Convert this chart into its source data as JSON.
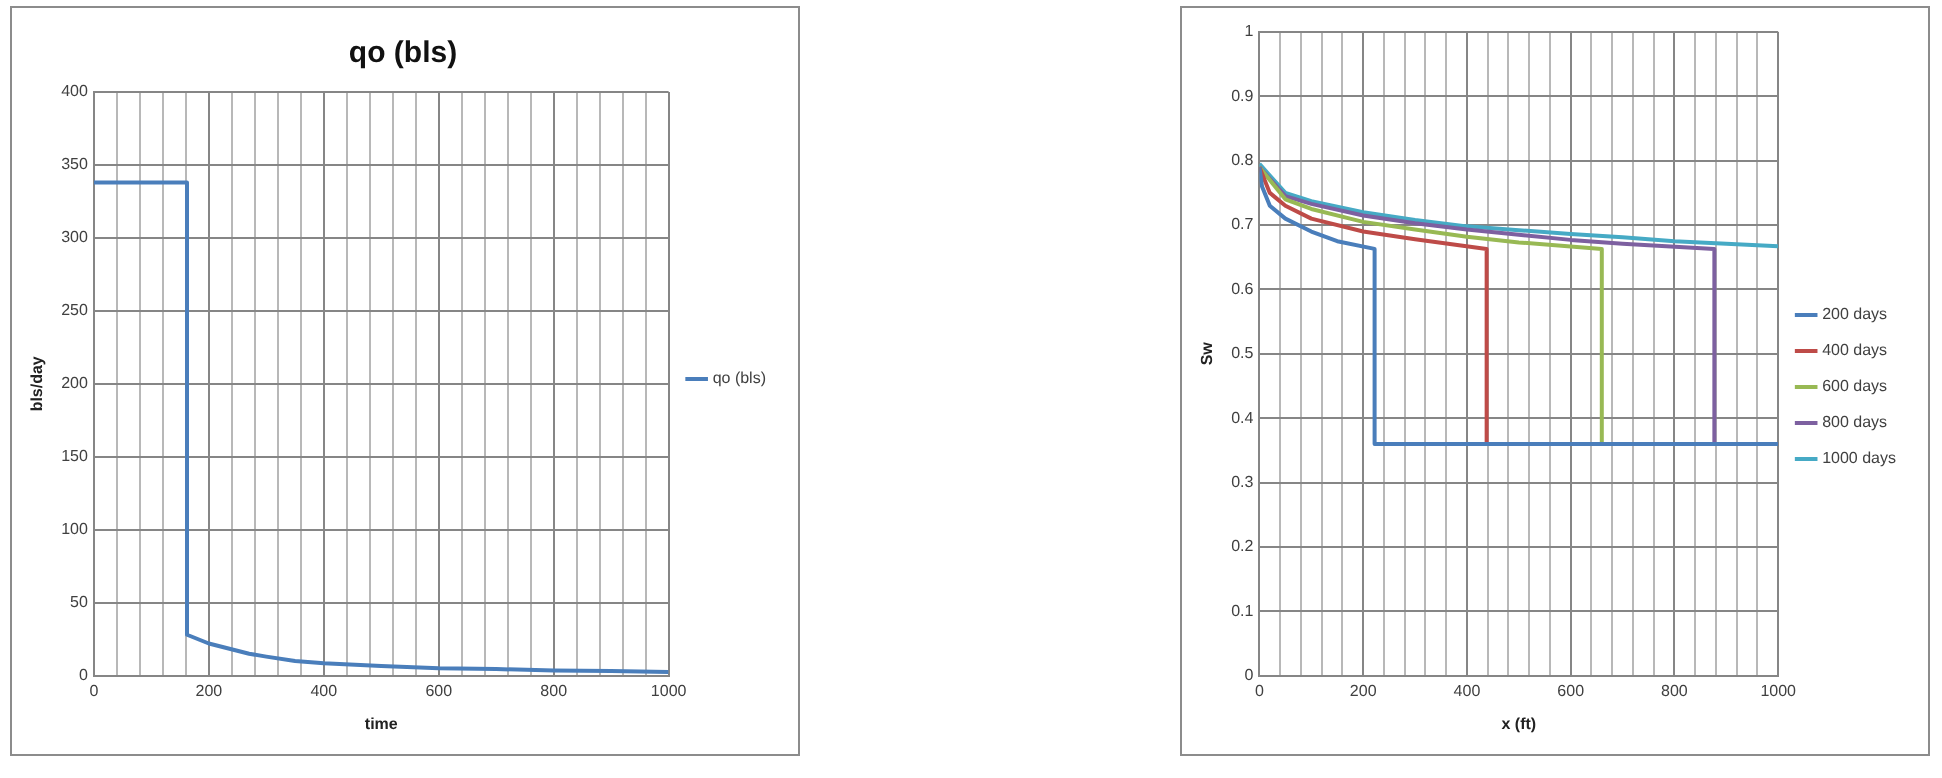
{
  "chart_data": [
    {
      "type": "line",
      "title": "qo (bls)",
      "xlabel": "time",
      "ylabel": "bls/day",
      "xlim": [
        0,
        1000
      ],
      "ylim": [
        0,
        400
      ],
      "xticks": [
        0,
        {
          "value": 40,
          "label": null
        },
        {
          "value": 80,
          "label": null
        },
        {
          "value": 120,
          "label": null
        },
        {
          "value": 160,
          "label": null
        },
        200,
        {
          "value": 240,
          "label": null
        },
        {
          "value": 280,
          "label": null
        },
        {
          "value": 320,
          "label": null
        },
        {
          "value": 360,
          "label": null
        },
        400,
        {
          "value": 440,
          "label": null
        },
        {
          "value": 480,
          "label": null
        },
        {
          "value": 520,
          "label": null
        },
        {
          "value": 560,
          "label": null
        },
        600,
        {
          "value": 640,
          "label": null
        },
        {
          "value": 680,
          "label": null
        },
        {
          "value": 720,
          "label": null
        },
        {
          "value": 760,
          "label": null
        },
        800,
        {
          "value": 840,
          "label": null
        },
        {
          "value": 880,
          "label": null
        },
        {
          "value": 920,
          "label": null
        },
        {
          "value": 960,
          "label": null
        },
        1000
      ],
      "yticks": [
        0,
        50,
        100,
        150,
        200,
        250,
        300,
        350,
        400
      ],
      "grid": true,
      "legend": "right",
      "series": [
        {
          "name": "qo (bls)",
          "color": "#4a7ebb",
          "x": [
            0,
            162,
            162,
            200,
            270,
            300,
            350,
            400,
            500,
            600,
            700,
            800,
            900,
            1000
          ],
          "values": [
            338,
            338,
            28,
            22,
            15,
            13,
            10,
            8.5,
            6.5,
            5,
            4.5,
            3.5,
            3.2,
            2.5
          ]
        }
      ]
    },
    {
      "type": "line",
      "xlabel": "x (ft)",
      "ylabel": "Sw",
      "xlim": [
        0,
        1000
      ],
      "ylim": [
        0,
        1
      ],
      "xticks": [
        0,
        {
          "value": 40,
          "label": null
        },
        {
          "value": 80,
          "label": null
        },
        {
          "value": 120,
          "label": null
        },
        {
          "value": 160,
          "label": null
        },
        200,
        {
          "value": 240,
          "label": null
        },
        {
          "value": 280,
          "label": null
        },
        {
          "value": 320,
          "label": null
        },
        {
          "value": 360,
          "label": null
        },
        400,
        {
          "value": 440,
          "label": null
        },
        {
          "value": 480,
          "label": null
        },
        {
          "value": 520,
          "label": null
        },
        {
          "value": 560,
          "label": null
        },
        600,
        {
          "value": 640,
          "label": null
        },
        {
          "value": 680,
          "label": null
        },
        {
          "value": 720,
          "label": null
        },
        {
          "value": 760,
          "label": null
        },
        800,
        {
          "value": 840,
          "label": null
        },
        {
          "value": 880,
          "label": null
        },
        {
          "value": 920,
          "label": null
        },
        {
          "value": 960,
          "label": null
        },
        1000
      ],
      "yticks": [
        0,
        0.1,
        0.2,
        0.3,
        0.4,
        0.5,
        0.6,
        0.7,
        0.8,
        0.9,
        1
      ],
      "grid": true,
      "legend": "right",
      "series": [
        {
          "name": "200 days",
          "color": "#4a7ebb",
          "x": [
            0,
            5,
            20,
            50,
            100,
            150,
            222,
            222,
            1000
          ],
          "values": [
            0.79,
            0.76,
            0.73,
            0.71,
            0.69,
            0.675,
            0.663,
            0.36,
            0.36
          ]
        },
        {
          "name": "400 days",
          "color": "#be4b48",
          "x": [
            0,
            20,
            50,
            100,
            200,
            300,
            438,
            438,
            1000
          ],
          "values": [
            0.79,
            0.75,
            0.73,
            0.71,
            0.69,
            0.678,
            0.663,
            0.36,
            0.36
          ]
        },
        {
          "name": "600 days",
          "color": "#98b954",
          "x": [
            0,
            50,
            100,
            200,
            300,
            400,
            500,
            660,
            660,
            1000
          ],
          "values": [
            0.79,
            0.74,
            0.725,
            0.705,
            0.693,
            0.682,
            0.673,
            0.663,
            0.36,
            0.36
          ]
        },
        {
          "name": "800 days",
          "color": "#7d60a0",
          "x": [
            0,
            50,
            100,
            200,
            300,
            400,
            500,
            600,
            700,
            877,
            877,
            1000
          ],
          "values": [
            0.79,
            0.745,
            0.733,
            0.715,
            0.703,
            0.693,
            0.685,
            0.677,
            0.671,
            0.663,
            0.36,
            0.36
          ]
        },
        {
          "name": "1000 days",
          "color": "#46aac5",
          "x": [
            0,
            50,
            100,
            200,
            300,
            400,
            500,
            600,
            700,
            800,
            900,
            1000
          ],
          "values": [
            0.795,
            0.75,
            0.737,
            0.72,
            0.708,
            0.698,
            0.692,
            0.686,
            0.681,
            0.675,
            0.671,
            0.667
          ]
        }
      ]
    }
  ]
}
